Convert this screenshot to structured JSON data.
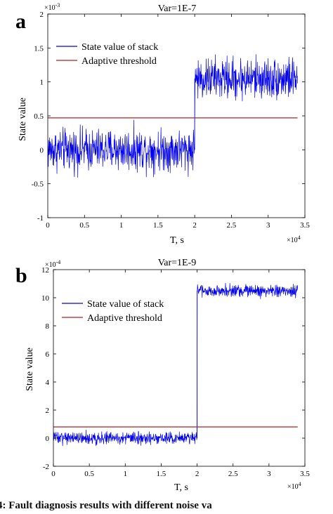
{
  "figure": {
    "caption": "4: Fault diagnosis results with different noise va"
  },
  "colors": {
    "state_series": "#0000ee",
    "threshold_series": "#b22222",
    "axis": "#000000"
  },
  "chart_data": [
    {
      "type": "line",
      "panel_label": "a",
      "title": "Var=1E-7",
      "xlabel": "T, s",
      "ylabel": "State value",
      "x_exponent_label": "×10",
      "x_exponent_power": "4",
      "y_exponent_label": "×10",
      "y_exponent_power": "-3",
      "xlim": [
        0,
        3.5
      ],
      "ylim": [
        -1,
        2
      ],
      "xticks": [
        0,
        0.5,
        1,
        1.5,
        2,
        2.5,
        3,
        3.5
      ],
      "xtick_labels": [
        "0",
        "0.5",
        "1",
        "1.5",
        "2",
        "2.5",
        "3",
        "3.5"
      ],
      "yticks": [
        -1,
        -0.5,
        0,
        0.5,
        1,
        1.5,
        2
      ],
      "ytick_labels": [
        "-1",
        "-0.5",
        "0",
        "0.5",
        "1",
        "1.5",
        "2"
      ],
      "legend_position": "top-left",
      "grid": false,
      "series": [
        {
          "name": "State value of stack",
          "kind": "noisy-step",
          "x_start": 0,
          "x_step": 2,
          "x_end": 3.4,
          "level_before": 0,
          "level_after": 1.05,
          "noise_amplitude": 0.45
        },
        {
          "name": "Adaptive threshold",
          "kind": "constant",
          "x_start": 0,
          "x_end": 3.4,
          "value": 0.47
        }
      ]
    },
    {
      "type": "line",
      "panel_label": "b",
      "title": "Var=1E-9",
      "xlabel": "T, s",
      "ylabel": "State value",
      "x_exponent_label": "×10",
      "x_exponent_power": "4",
      "y_exponent_label": "×10",
      "y_exponent_power": "-4",
      "xlim": [
        0,
        3.5
      ],
      "ylim": [
        -2,
        12
      ],
      "xticks": [
        0,
        0.5,
        1,
        1.5,
        2,
        2.5,
        3,
        3.5
      ],
      "xtick_labels": [
        "0",
        "0.5",
        "1",
        "1.5",
        "2",
        "2.5",
        "3",
        "3.5"
      ],
      "yticks": [
        -2,
        0,
        2,
        4,
        6,
        8,
        10,
        12
      ],
      "ytick_labels": [
        "-2",
        "0",
        "2",
        "4",
        "6",
        "8",
        "10",
        "12"
      ],
      "legend_position": "top-left",
      "grid": false,
      "series": [
        {
          "name": "State value of stack",
          "kind": "noisy-step",
          "x_start": 0,
          "x_step": 2,
          "x_end": 3.4,
          "level_before": 0,
          "level_after": 10.5,
          "noise_amplitude": 0.65
        },
        {
          "name": "Adaptive threshold",
          "kind": "constant",
          "x_start": 0,
          "x_end": 3.4,
          "value": 0.8
        }
      ]
    }
  ]
}
